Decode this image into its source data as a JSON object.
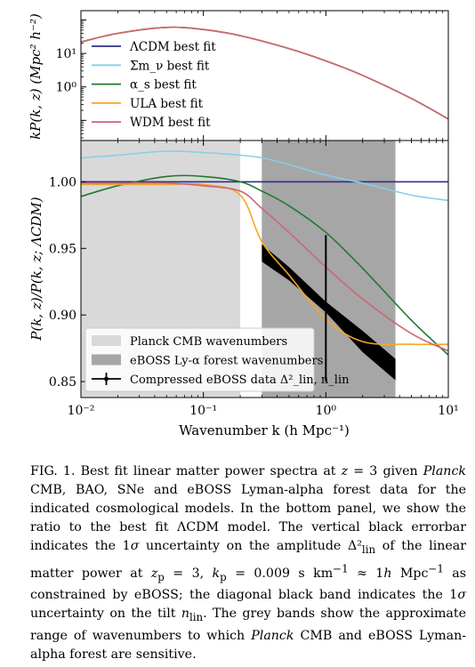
{
  "figure": {
    "top_ylabel": "kP(k, z) (Mpc² h⁻²)",
    "bottom_ylabel": "P(k, z)/P(k, z; ΛCDM)",
    "xlabel": "Wavenumber k (h Mpc⁻¹)",
    "top_ytick_labels": [
      "10¹",
      "10⁰"
    ],
    "bottom_ytick_labels": [
      "1.00",
      "0.95",
      "0.90",
      "0.85"
    ],
    "xtick_labels": [
      "10⁻²",
      "10⁻¹",
      "10⁰",
      "10¹"
    ],
    "top_legend": [
      {
        "label": "ΛCDM best fit",
        "color": "#2b2d8f"
      },
      {
        "label": "Σm_ν best fit",
        "color": "#87ceeb"
      },
      {
        "label": "α_s best fit",
        "color": "#1f7a2e"
      },
      {
        "label": "ULA best fit",
        "color": "#f5a623"
      },
      {
        "label": "WDM best fit",
        "color": "#cc6677"
      }
    ],
    "bottom_legend": [
      {
        "label": "Planck CMB wavenumbers",
        "color": "#d9d9d9"
      },
      {
        "label": "eBOSS Ly-α forest wavenumbers",
        "color": "#a6a6a6"
      },
      {
        "label": "Compressed eBOSS data Δ²_lin, n_lin",
        "color": "#000000"
      }
    ]
  },
  "chart_data": [
    {
      "type": "line",
      "panel": "top",
      "xlabel": "",
      "ylabel": "kP(k, z) (Mpc² h⁻²)",
      "x_scale": "log",
      "y_scale": "log",
      "xlim": [
        0.01,
        10
      ],
      "ylim": [
        0.025,
        190
      ],
      "legend_position": "left",
      "x": [
        0.01,
        0.02,
        0.05,
        0.1,
        0.2,
        0.5,
        1,
        2,
        5,
        10
      ],
      "series": [
        {
          "name": "ΛCDM best fit",
          "values": [
            22,
            40,
            60,
            52,
            34,
            14,
            6,
            2.2,
            0.45,
            0.11
          ]
        },
        {
          "name": "Σm_ν best fit",
          "values": [
            22,
            40,
            60,
            52,
            34,
            14,
            6,
            2.2,
            0.45,
            0.11
          ]
        },
        {
          "name": "α_s best fit",
          "values": [
            22,
            40,
            60,
            52,
            34,
            14,
            6,
            2.2,
            0.45,
            0.11
          ]
        },
        {
          "name": "ULA best fit",
          "values": [
            22,
            40,
            60,
            52,
            34,
            14,
            6,
            2.2,
            0.45,
            0.11
          ]
        },
        {
          "name": "WDM best fit",
          "values": [
            22,
            40,
            60,
            52,
            34,
            14,
            6,
            2.2,
            0.45,
            0.11
          ]
        }
      ]
    },
    {
      "type": "line",
      "panel": "bottom",
      "xlabel": "Wavenumber k (h Mpc⁻¹)",
      "ylabel": "P(k, z)/P(k, z; ΛCDM)",
      "x_scale": "log",
      "xlim": [
        0.01,
        10
      ],
      "ylim": [
        0.838,
        1.031
      ],
      "legend_position": "lower-left",
      "bands": [
        {
          "name": "Planck CMB wavenumbers",
          "x_range": [
            0.01,
            0.2
          ],
          "color": "#d9d9d9"
        },
        {
          "name": "eBOSS Ly-α forest wavenumbers",
          "x_range": [
            0.3,
            3.7
          ],
          "color": "#a6a6a6"
        }
      ],
      "errorbar": {
        "name": "Compressed eBOSS data Δ²_lin, n_lin",
        "x": 1.0,
        "y": 0.905,
        "yerr": 0.055
      },
      "tilt_band": {
        "x": [
          0.3,
          0.5,
          1.0,
          2.0,
          3.7
        ],
        "upper": [
          0.953,
          0.936,
          0.91,
          0.888,
          0.867
        ],
        "lower": [
          0.94,
          0.926,
          0.902,
          0.872,
          0.851
        ]
      },
      "x": [
        0.01,
        0.02,
        0.05,
        0.1,
        0.2,
        0.3,
        0.5,
        1,
        2,
        5,
        10
      ],
      "series": [
        {
          "name": "ΛCDM best fit",
          "values": [
            1.0,
            1.0,
            1.0,
            1.0,
            1.0,
            1.0,
            1.0,
            1.0,
            1.0,
            1.0,
            1.0
          ]
        },
        {
          "name": "Σm_ν best fit",
          "values": [
            1.018,
            1.02,
            1.023,
            1.022,
            1.02,
            1.018,
            1.013,
            1.005,
            0.999,
            0.99,
            0.986
          ]
        },
        {
          "name": "α_s best fit",
          "values": [
            0.989,
            0.997,
            1.004,
            1.004,
            1.0,
            0.993,
            0.982,
            0.962,
            0.935,
            0.896,
            0.87
          ]
        },
        {
          "name": "ULA best fit",
          "values": [
            0.998,
            0.998,
            0.998,
            0.998,
            0.99,
            0.955,
            0.93,
            0.897,
            0.88,
            0.878,
            0.878
          ]
        },
        {
          "name": "WDM best fit",
          "values": [
            0.999,
            0.999,
            0.999,
            0.997,
            0.993,
            0.98,
            0.962,
            0.936,
            0.912,
            0.886,
            0.873
          ]
        }
      ]
    }
  ],
  "caption": {
    "label": "FIG. 1.",
    "text_html": "Best fit linear matter power spectra at <i>z</i> = 3 given <i>Planck</i> CMB, BAO, SNe and eBOSS Lyman-alpha forest data for the indicated cosmological models. In the bottom panel, we show the ratio to the best fit ΛCDM model. The vertical black errorbar indicates the 1<i>σ</i> uncertainty on the amplitude Δ²<sub>lin</sub> of the linear matter power at <i>z</i><sub>p</sub> = 3, <i>k</i><sub>p</sub> = 0.009 s km<sup>−1</sup> ≈ 1<i>h</i> Mpc<sup>−1</sup> as constrained by eBOSS; the diagonal black band indicates the 1<i>σ</i> uncertainty on the tilt <i>n</i><sub>lin</sub>. The grey bands show the approximate range of wavenumbers to which <i>Planck</i> CMB and eBOSS Lyman-alpha forest are sensitive."
  }
}
